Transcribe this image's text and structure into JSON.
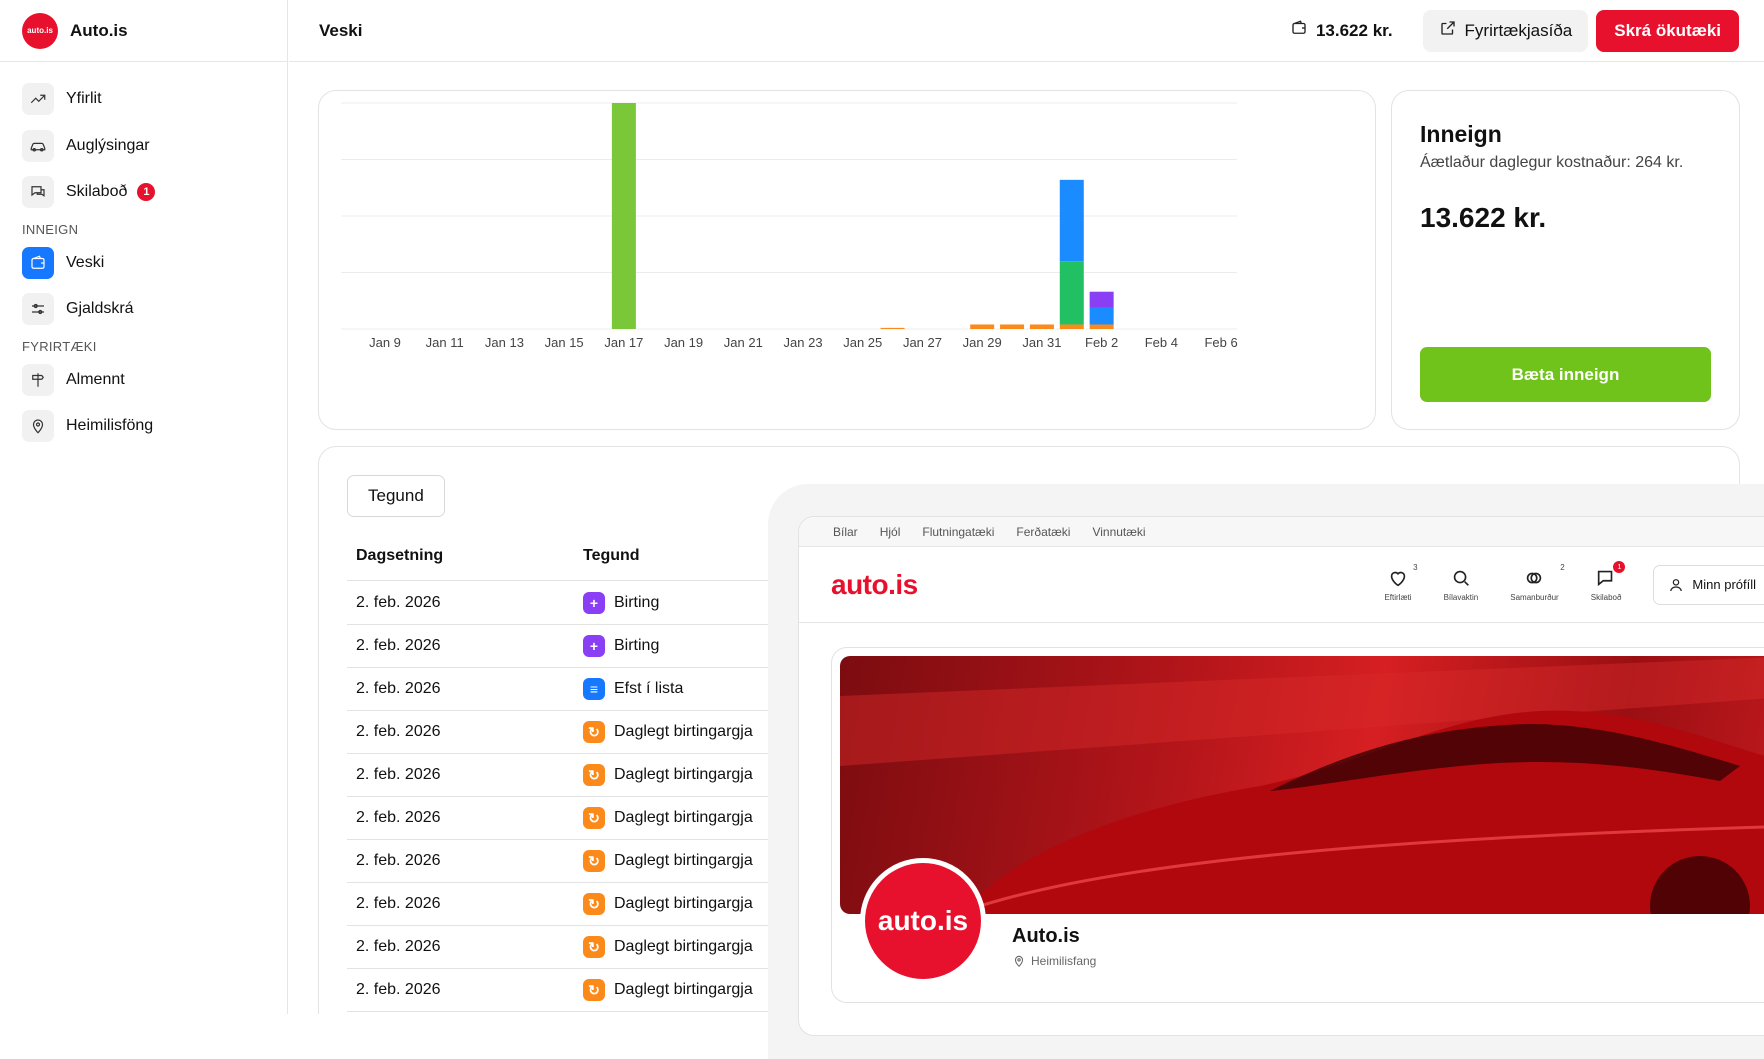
{
  "brand": {
    "name": "Auto.is",
    "logo_text": "auto.is"
  },
  "sidebar": {
    "items": [
      {
        "label": "Yfirlit",
        "icon": "trend-up-icon"
      },
      {
        "label": "Auglýsingar",
        "icon": "car-icon"
      },
      {
        "label": "Skilaboð",
        "icon": "messages-icon",
        "badge": "1"
      }
    ],
    "section_inneign": "INNEIGN",
    "inneign_items": [
      {
        "label": "Veski",
        "icon": "wallet-icon",
        "active": true
      },
      {
        "label": "Gjaldskrá",
        "icon": "sliders-icon"
      }
    ],
    "section_fyrirtaeki": "FYRIRTÆKI",
    "fyrirtaeki_items": [
      {
        "label": "Almennt",
        "icon": "signpost-icon"
      },
      {
        "label": "Heimilisföng",
        "icon": "map-pin-icon"
      }
    ]
  },
  "header": {
    "title": "Veski",
    "balance": "13.622 kr.",
    "company_page_button": "Fyrirtækjasíða",
    "register_vehicle_button": "Skrá ökutæki"
  },
  "chart_data": {
    "type": "bar",
    "stacked": true,
    "x_ticks": [
      "Jan 9",
      "Jan 11",
      "Jan 13",
      "Jan 15",
      "Jan 17",
      "Jan 19",
      "Jan 21",
      "Jan 23",
      "Jan 25",
      "Jan 27",
      "Jan 29",
      "Jan 31",
      "Feb 2",
      "Feb 4",
      "Feb 6"
    ],
    "categories": [
      "Jan 17",
      "Jan 26",
      "Jan 29",
      "Jan 30",
      "Jan 31",
      "Feb 1",
      "Feb 2"
    ],
    "series": [
      {
        "color": "#fb8a1a",
        "values": [
          0,
          1,
          4,
          4,
          4,
          4,
          4
        ]
      },
      {
        "color": "#21c063",
        "values": [
          0,
          0,
          0,
          0,
          0,
          56,
          0
        ]
      },
      {
        "color": "#1a8cff",
        "values": [
          0,
          0,
          0,
          0,
          0,
          72,
          15
        ]
      },
      {
        "color": "#8a3ff5",
        "values": [
          0,
          0,
          0,
          0,
          0,
          0,
          14
        ]
      },
      {
        "color": "#7ac83a",
        "values": [
          200,
          0,
          0,
          0,
          0,
          0,
          0
        ]
      }
    ],
    "ylim": [
      0,
      200
    ],
    "grid": true
  },
  "balance_card": {
    "title": "Inneign",
    "subtitle": "Áætlaður daglegur kostnaður: 264 kr.",
    "amount": "13.622 kr.",
    "add_button": "Bæta inneign"
  },
  "table": {
    "filter_button": "Tegund",
    "columns": [
      "Dagsetning",
      "Tegund"
    ],
    "rows": [
      {
        "date": "2. feb. 2026",
        "type": "Birting",
        "kind": "purple"
      },
      {
        "date": "2. feb. 2026",
        "type": "Birting",
        "kind": "purple"
      },
      {
        "date": "2. feb. 2026",
        "type": "Efst í lista",
        "kind": "blue"
      },
      {
        "date": "2. feb. 2026",
        "type": "Daglegt birtingargja",
        "kind": "orange"
      },
      {
        "date": "2. feb. 2026",
        "type": "Daglegt birtingargja",
        "kind": "orange"
      },
      {
        "date": "2. feb. 2026",
        "type": "Daglegt birtingargja",
        "kind": "orange"
      },
      {
        "date": "2. feb. 2026",
        "type": "Daglegt birtingargja",
        "kind": "orange"
      },
      {
        "date": "2. feb. 2026",
        "type": "Daglegt birtingargja",
        "kind": "orange"
      },
      {
        "date": "2. feb. 2026",
        "type": "Daglegt birtingargja",
        "kind": "orange"
      },
      {
        "date": "2. feb. 2026",
        "type": "Daglegt birtingargja",
        "kind": "orange"
      }
    ]
  },
  "preview": {
    "top_nav": [
      "Bílar",
      "Hjól",
      "Flutningatæki",
      "Ferðatæki",
      "Vinnutæki"
    ],
    "logo": "auto.is",
    "actions": [
      {
        "label": "Eftirlæti",
        "count": "3",
        "icon": "heart-icon"
      },
      {
        "label": "Bílavaktin",
        "count": "",
        "icon": "search-heart-icon"
      },
      {
        "label": "Samanburður",
        "count": "2",
        "icon": "compare-icon"
      },
      {
        "label": "Skilaboð",
        "count": "1",
        "icon": "chat-icon"
      }
    ],
    "profile_button": "Minn prófíll",
    "company_name": "Auto.is",
    "company_address": "Heimilisfang",
    "avatar_text": "auto.is"
  }
}
